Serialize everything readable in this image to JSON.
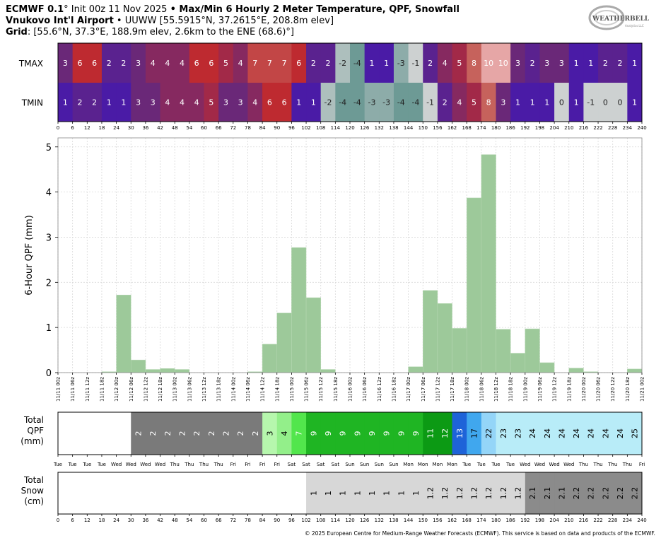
{
  "header": {
    "model": "ECMWF 0.1",
    "deg": "°",
    "init": " Init 00z 11 Nov 2025 ",
    "bullet": "•",
    "product": " Max/Min 6 Hourly 2 Meter Temperature,  QPF,  Snowfall",
    "station_name": "Vnukovo Int'l Airport",
    "station_info": " • UUWW [55.5915°N, 37.2615°E, 208.8m elev]",
    "grid_label": "Grid",
    "grid_info": ": [55.6°N, 37.3°E, 188.9m elev, 2.6km to the ENE (68.6)°]"
  },
  "logo": {
    "line1": "WEATHERBELL",
    "line2": "Analytics LLC"
  },
  "footer": "© 2025 European Centre for Medium-Range Weather Forecasts (ECMWF). This service is based on data and products of the ECMWF.",
  "chart_data": {
    "type": "bar",
    "forecast_hours": [
      0,
      6,
      12,
      18,
      24,
      30,
      36,
      42,
      48,
      54,
      60,
      66,
      72,
      78,
      84,
      90,
      96,
      102,
      108,
      114,
      120,
      126,
      132,
      138,
      144,
      150,
      156,
      162,
      168,
      174,
      180,
      186,
      192,
      198,
      204,
      210,
      216,
      222,
      228,
      234,
      240
    ],
    "tmax": {
      "label": "TMAX",
      "values": [
        3,
        6,
        6,
        2,
        2,
        3,
        4,
        4,
        4,
        6,
        6,
        5,
        4,
        7,
        7,
        7,
        6,
        2,
        2,
        -2,
        -4,
        1,
        1,
        -3,
        -1,
        2,
        4,
        5,
        8,
        10,
        10,
        3,
        2,
        3,
        3,
        1,
        1,
        2,
        2,
        1
      ]
    },
    "tmin": {
      "label": "TMIN",
      "values": [
        1,
        2,
        2,
        1,
        1,
        3,
        3,
        4,
        4,
        4,
        5,
        3,
        3,
        4,
        6,
        6,
        1,
        1,
        -2,
        -4,
        -4,
        -3,
        -3,
        -4,
        -4,
        -1,
        2,
        4,
        5,
        8,
        3,
        1,
        1,
        1,
        0,
        1,
        -1,
        0,
        0,
        1
      ]
    },
    "qpf": {
      "ylabel": "6-Hour QPF (mm)",
      "ylim": [
        0,
        5.2
      ],
      "yticks": [
        0,
        1,
        2,
        3,
        4,
        5
      ],
      "color": "#9dc99a",
      "x": [
        "11/11 00z",
        "11/11 06z",
        "11/11 12z",
        "11/11 18z",
        "11/12 00z",
        "11/12 06z",
        "11/12 12z",
        "11/12 18z",
        "11/13 00z",
        "11/13 06z",
        "11/13 12z",
        "11/13 18z",
        "11/14 00z",
        "11/14 06z",
        "11/14 12z",
        "11/14 18z",
        "11/15 00z",
        "11/15 06z",
        "11/15 12z",
        "11/15 18z",
        "11/16 00z",
        "11/16 06z",
        "11/16 12z",
        "11/16 18z",
        "11/17 00z",
        "11/17 06z",
        "11/17 12z",
        "11/17 18z",
        "11/18 00z",
        "11/18 06z",
        "11/18 12z",
        "11/18 18z",
        "11/19 00z",
        "11/19 06z",
        "11/19 12z",
        "11/19 18z",
        "11/20 00z",
        "11/20 06z",
        "11/20 12z",
        "11/20 18z",
        "11/21 00z"
      ],
      "values": [
        0,
        0,
        0,
        0,
        0.02,
        1.72,
        0.28,
        0.07,
        0.09,
        0.07,
        0,
        0,
        0,
        0,
        0.02,
        0.63,
        1.32,
        2.77,
        1.66,
        0.07,
        0,
        0,
        0,
        0,
        0,
        0.13,
        1.82,
        1.53,
        0.98,
        3.87,
        4.83,
        0.96,
        0.43,
        0.97,
        0.22,
        0,
        0.1,
        0.02,
        0,
        0,
        0.08
      ]
    },
    "total_qpf": {
      "label": [
        "Total",
        "QPF",
        "(mm)"
      ],
      "values": [
        0,
        0,
        0,
        0,
        0,
        2,
        2,
        2,
        2,
        2,
        2,
        2,
        2,
        2,
        3,
        4,
        7,
        9,
        9,
        9,
        9,
        9,
        9,
        9,
        9,
        11,
        12,
        13,
        17,
        22,
        23,
        23,
        24,
        24,
        24,
        24,
        24,
        24,
        24,
        25
      ],
      "labels": [
        "",
        "",
        "",
        "",
        "",
        "2",
        "2",
        "2",
        "2",
        "2",
        "2",
        "2",
        "2",
        "2",
        "3",
        "4",
        "7",
        "9",
        "9",
        "9",
        "9",
        "9",
        "9",
        "9",
        "9",
        "11",
        "12",
        "13",
        "17",
        "22",
        "23",
        "23",
        "24",
        "24",
        "24",
        "24",
        "24",
        "24",
        "24",
        "25"
      ],
      "days": [
        "Tue",
        "Tue",
        "Tue",
        "Tue",
        "Wed",
        "Wed",
        "Wed",
        "Wed",
        "Thu",
        "Thu",
        "Thu",
        "Thu",
        "Fri",
        "Fri",
        "Fri",
        "Fri",
        "Sat",
        "Sat",
        "Sat",
        "Sat",
        "Sun",
        "Sun",
        "Sun",
        "Sun",
        "Mon",
        "Mon",
        "Mon",
        "Mon",
        "Tue",
        "Tue",
        "Tue",
        "Tue",
        "Wed",
        "Wed",
        "Wed",
        "Wed",
        "Thu",
        "Thu",
        "Thu",
        "Thu",
        "Fri"
      ]
    },
    "total_snow": {
      "label": [
        "Total",
        "Snow",
        "(cm)"
      ],
      "values": [
        0,
        0,
        0,
        0,
        0,
        0,
        0,
        0,
        0,
        0,
        0,
        0,
        0,
        0,
        0,
        0,
        0,
        1,
        1,
        1,
        1,
        1,
        1,
        1,
        1,
        1.2,
        1.2,
        1.2,
        1.2,
        1.2,
        1.2,
        1.2,
        2.1,
        2.1,
        2.1,
        2.2,
        2.2,
        2.2,
        2.2,
        2.2
      ],
      "labels": [
        "",
        "",
        "",
        "",
        "",
        "",
        "",
        "",
        "",
        "",
        "",
        "",
        "",
        "",
        "",
        "",
        "",
        "1",
        "1",
        "1",
        "1",
        "1",
        "1",
        "1",
        "1",
        "1.2",
        "1.2",
        "1.2",
        "1.2",
        "1.2",
        "1.2",
        "1.2",
        "2.1",
        "2.1",
        "2.1",
        "2.2",
        "2.2",
        "2.2",
        "2.2",
        "2.2"
      ]
    }
  }
}
